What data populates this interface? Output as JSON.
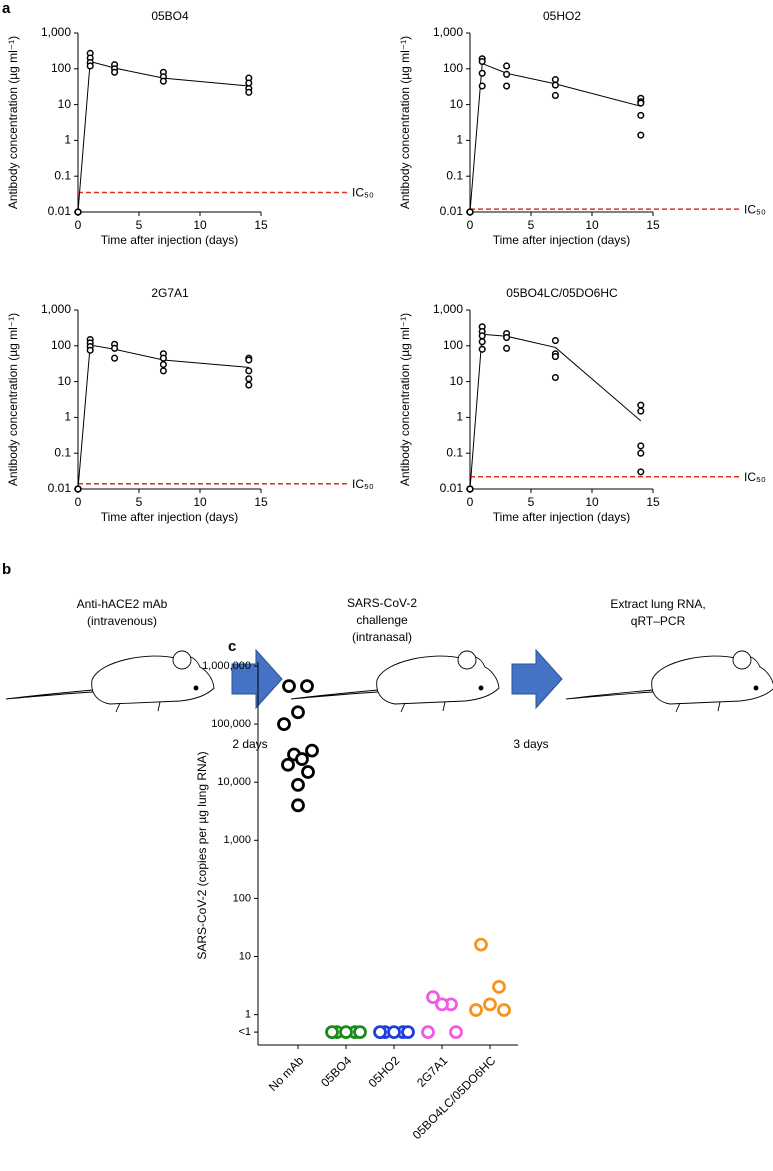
{
  "panel_labels": [
    "a",
    "b",
    "c"
  ],
  "chart_data": [
    {
      "type": "scatter",
      "title": "05BO4",
      "x_label": "Time after injection (days)",
      "y_label": "Antibody concentration (µg ml⁻¹)",
      "log_y": true,
      "xlim": [
        0,
        15
      ],
      "ylim": [
        0.01,
        1000
      ],
      "xticks": [
        0,
        5,
        10,
        15
      ],
      "yticks": [
        0.01,
        0.1,
        1,
        10,
        100,
        {
          "value": 1000,
          "label": "1,000"
        }
      ],
      "points": {
        "color": "#000000",
        "x": [
          0,
          0,
          0,
          0,
          1,
          1,
          1,
          1,
          3,
          3,
          3,
          7,
          7,
          7,
          14,
          14,
          14,
          14
        ],
        "values": [
          0.01,
          0.01,
          0.01,
          0.01,
          270,
          200,
          150,
          120,
          130,
          100,
          80,
          80,
          60,
          45,
          55,
          40,
          28,
          22
        ]
      },
      "mean": {
        "color": "#000000",
        "x": [
          0,
          1,
          3,
          7,
          14
        ],
        "values": [
          0.01,
          160,
          105,
          55,
          33
        ]
      },
      "ic50": {
        "label": "IC₅₀",
        "value": 0.035,
        "color": "#e0301e"
      }
    },
    {
      "type": "scatter",
      "title": "05HO2",
      "x_label": "Time after injection (days)",
      "y_label": "Antibody concentration (µg ml⁻¹)",
      "log_y": true,
      "xlim": [
        0,
        15
      ],
      "ylim": [
        0.01,
        1000
      ],
      "xticks": [
        0,
        5,
        10,
        15
      ],
      "yticks": [
        0.01,
        0.1,
        1,
        10,
        100,
        {
          "value": 1000,
          "label": "1,000"
        }
      ],
      "points": {
        "color": "#000000",
        "x": [
          0,
          0,
          0,
          0,
          1,
          1,
          1,
          1,
          3,
          3,
          3,
          7,
          7,
          7,
          14,
          14,
          14,
          14,
          14
        ],
        "values": [
          0.01,
          0.01,
          0.01,
          0.01,
          190,
          160,
          75,
          33,
          120,
          70,
          33,
          50,
          35,
          18,
          15,
          12,
          11,
          5,
          1.4
        ]
      },
      "mean": {
        "color": "#000000",
        "x": [
          0,
          1,
          3,
          7,
          14
        ],
        "values": [
          0.01,
          140,
          75,
          38,
          9
        ]
      },
      "ic50": {
        "label": "IC₅₀",
        "value": 0.012,
        "color": "#e0301e"
      }
    },
    {
      "type": "scatter",
      "title": "2G7A1",
      "x_label": "Time after injection (days)",
      "y_label": "Antibody concentration (µg ml⁻¹)",
      "log_y": true,
      "xlim": [
        0,
        15
      ],
      "ylim": [
        0.01,
        1000
      ],
      "xticks": [
        0,
        5,
        10,
        15
      ],
      "yticks": [
        0.01,
        0.1,
        1,
        10,
        100,
        {
          "value": 1000,
          "label": "1,000"
        }
      ],
      "points": {
        "color": "#000000",
        "x": [
          0,
          0,
          0,
          0,
          1,
          1,
          1,
          1,
          3,
          3,
          3,
          7,
          7,
          7,
          7,
          14,
          14,
          14,
          14,
          14
        ],
        "values": [
          0.01,
          0.01,
          0.01,
          0.01,
          150,
          120,
          95,
          75,
          110,
          85,
          45,
          60,
          45,
          30,
          20,
          45,
          40,
          20,
          12,
          8
        ]
      },
      "mean": {
        "color": "#000000",
        "x": [
          0,
          1,
          3,
          7,
          14
        ],
        "values": [
          0.01,
          105,
          80,
          40,
          25
        ]
      },
      "ic50": {
        "label": "IC₅₀",
        "value": 0.014,
        "color": "#e0301e"
      }
    },
    {
      "type": "scatter",
      "title": "05BO4LC/05DO6HC",
      "x_label": "Time after injection (days)",
      "y_label": "Antibody concentration (µg ml⁻¹)",
      "log_y": true,
      "xlim": [
        0,
        15
      ],
      "ylim": [
        0.01,
        1000
      ],
      "xticks": [
        0,
        5,
        10,
        15
      ],
      "yticks": [
        0.01,
        0.1,
        1,
        10,
        100,
        {
          "value": 1000,
          "label": "1,000"
        }
      ],
      "points": {
        "color": "#000000",
        "x": [
          0,
          0,
          0,
          0,
          1,
          1,
          1,
          1,
          1,
          3,
          3,
          3,
          7,
          7,
          7,
          7,
          14,
          14,
          14,
          14,
          14
        ],
        "values": [
          0.01,
          0.01,
          0.01,
          0.01,
          340,
          250,
          190,
          130,
          80,
          220,
          170,
          85,
          140,
          60,
          50,
          13,
          2.2,
          1.5,
          0.16,
          0.1,
          0.03
        ]
      },
      "mean": {
        "color": "#000000",
        "x": [
          0,
          1,
          3,
          7,
          14
        ],
        "values": [
          0.01,
          210,
          185,
          90,
          0.8
        ]
      },
      "ic50": {
        "label": "IC₅₀",
        "value": 0.022,
        "color": "#e0301e"
      }
    },
    {
      "type": "strip",
      "y_label": "SARS-CoV-2 (copies per µg lung RNA)",
      "log_y": true,
      "categories": [
        "No mAb",
        "05BO4",
        "05HO2",
        "2G7A1",
        "05BO4LC/05DO6HC"
      ],
      "ylim": [
        0.3,
        1000000
      ],
      "yticks": [
        {
          "value": 0.5,
          "label": "<1"
        },
        1,
        10,
        100,
        {
          "value": 1000,
          "label": "1,000"
        },
        {
          "value": 10000,
          "label": "10,000"
        },
        {
          "value": 100000,
          "label": "100,000"
        },
        {
          "value": 1000000,
          "label": "1,000,000"
        }
      ],
      "series": [
        {
          "color": "#000000",
          "values": [
            450000,
            450000,
            160000,
            100000,
            35000,
            30000,
            25000,
            20000,
            15000,
            9000,
            4000
          ]
        },
        {
          "color": "#1a8a1a",
          "values": [
            0.5,
            0.5,
            0.5,
            0.5,
            0.5
          ]
        },
        {
          "color": "#1f3de0",
          "values": [
            0.5,
            0.5,
            0.5,
            0.5,
            0.5
          ]
        },
        {
          "color": "#f05ae6",
          "values": [
            2,
            1.5,
            1.5,
            0.5,
            0.5
          ]
        },
        {
          "color": "#f7931e",
          "values": [
            16,
            3,
            1.5,
            1.2,
            1.2
          ]
        }
      ]
    }
  ],
  "diagram": {
    "steps": [
      [
        "Anti-hACE2 mAb",
        "(intravenous)"
      ],
      [
        "SARS-CoV-2",
        "challenge",
        "(intranasal)"
      ],
      [
        "Extract lung RNA,",
        "qRT–PCR"
      ]
    ],
    "intervals": [
      "2 days",
      "3 days"
    ]
  }
}
